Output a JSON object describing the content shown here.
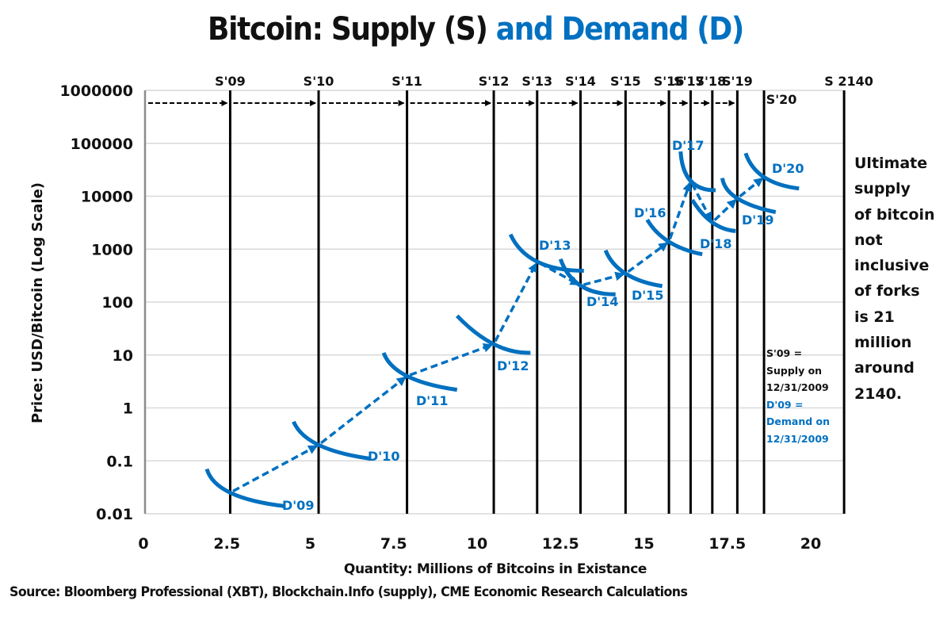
{
  "title": {
    "part_black": "Bitcoin: Supply (S)",
    "part_blue": "and Demand (D)"
  },
  "colors": {
    "demand": "#0070C0",
    "supply": "#000000",
    "grid": "#d9d9d9",
    "axis": "#8c8c8c"
  },
  "chart_data": {
    "type": "line",
    "title": "Bitcoin: Supply (S) and Demand (D)",
    "xlabel": "Quantity:  Millions of Bitcoins in Existance",
    "ylabel": "Price: USD/Bitcoin (Log Scale)",
    "yscale": "log",
    "ylim": [
      0.01,
      1000000
    ],
    "xlim": [
      0,
      21
    ],
    "grid": true,
    "y_ticks": [
      "1000000",
      "100000",
      "10000",
      "1000",
      "100",
      "10",
      "1",
      "0.1",
      "0.01"
    ],
    "y_tick_values": [
      1000000,
      100000,
      10000,
      1000,
      100,
      10,
      1,
      0.1,
      0.01
    ],
    "x_ticks": [
      "0",
      "2.5",
      "5",
      "7.5",
      "10",
      "12.5",
      "15",
      "17.5",
      "20"
    ],
    "x_tick_values": [
      0,
      2.5,
      5,
      7.5,
      10,
      12.5,
      15,
      17.5,
      20
    ],
    "supply_lines": [
      {
        "label": "S'09",
        "quantity": 2.6
      },
      {
        "label": "S'10",
        "quantity": 5.25
      },
      {
        "label": "S'11",
        "quantity": 7.9
      },
      {
        "label": "S'12",
        "quantity": 10.5
      },
      {
        "label": "S'13",
        "quantity": 11.8
      },
      {
        "label": "S'14",
        "quantity": 13.1
      },
      {
        "label": "S'15",
        "quantity": 14.45
      },
      {
        "label": "S'16",
        "quantity": 15.75
      },
      {
        "label": "S'17",
        "quantity": 16.4
      },
      {
        "label": "S'18",
        "quantity": 17.05
      },
      {
        "label": "S'19",
        "quantity": 17.8
      },
      {
        "label": "S'20",
        "quantity": 18.6
      },
      {
        "label": "S 2140",
        "quantity": 21.0
      }
    ],
    "supply_shift_arrows_price": 500000,
    "demand_curves": [
      {
        "label": "D'09",
        "equilibrium": [
          2.6,
          0.025
        ],
        "start": [
          1.9,
          0.07
        ],
        "end": [
          4.2,
          0.014
        ]
      },
      {
        "label": "D'10",
        "equilibrium": [
          5.25,
          0.2
        ],
        "start": [
          4.5,
          0.55
        ],
        "end": [
          6.8,
          0.11
        ]
      },
      {
        "label": "D'11",
        "equilibrium": [
          7.9,
          4
        ],
        "start": [
          7.2,
          11
        ],
        "end": [
          9.4,
          2.2
        ]
      },
      {
        "label": "D'12",
        "equilibrium": [
          10.5,
          16
        ],
        "start": [
          9.4,
          55
        ],
        "end": [
          11.6,
          11
        ]
      },
      {
        "label": "D'13",
        "equilibrium": [
          11.8,
          580
        ],
        "start": [
          11.0,
          1900
        ],
        "end": [
          13.2,
          390
        ]
      },
      {
        "label": "D'14",
        "equilibrium": [
          13.1,
          205
        ],
        "start": [
          12.5,
          650
        ],
        "end": [
          14.15,
          140
        ]
      },
      {
        "label": "D'15",
        "equilibrium": [
          14.45,
          345
        ],
        "start": [
          13.85,
          950
        ],
        "end": [
          15.55,
          200
        ]
      },
      {
        "label": "D'16",
        "equilibrium": [
          15.75,
          1380
        ],
        "start": [
          15.1,
          3600
        ],
        "end": [
          16.75,
          800
        ]
      },
      {
        "label": "D'17",
        "equilibrium": [
          16.4,
          19500
        ],
        "start": [
          16.1,
          70000
        ],
        "end": [
          17.15,
          13000
        ]
      },
      {
        "label": "D'18",
        "equilibrium": [
          17.05,
          3200
        ],
        "start": [
          16.45,
          8500
        ],
        "end": [
          17.75,
          2200
        ]
      },
      {
        "label": "D'19",
        "equilibrium": [
          17.8,
          9100
        ],
        "start": [
          17.35,
          22000
        ],
        "end": [
          18.95,
          5000
        ]
      },
      {
        "label": "D'20",
        "equilibrium": [
          18.6,
          23000
        ],
        "start": [
          18.05,
          65000
        ],
        "end": [
          19.65,
          14000
        ]
      }
    ],
    "equilibrium_path": [
      [
        2.6,
        0.025
      ],
      [
        5.25,
        0.2
      ],
      [
        7.9,
        4
      ],
      [
        10.5,
        16
      ],
      [
        11.8,
        580
      ],
      [
        13.1,
        205
      ],
      [
        14.45,
        345
      ],
      [
        15.75,
        1380
      ],
      [
        16.4,
        19500
      ],
      [
        17.05,
        3200
      ],
      [
        17.8,
        9100
      ],
      [
        18.6,
        23000
      ]
    ]
  },
  "notes": {
    "ultimate_supply": [
      "Ultimate",
      "supply",
      "of bitcoin",
      "not",
      "inclusive",
      "of forks",
      "is 21",
      "million",
      "around",
      "2140."
    ],
    "legend_supply": [
      "S'09 =",
      "Supply on",
      "12/31/2009"
    ],
    "legend_demand": [
      "D'09 =",
      "Demand on",
      "12/31/2009"
    ]
  },
  "source": "Source: Bloomberg Professional (XBT), Blockchain.Info (supply), CME Economic Research Calculations"
}
